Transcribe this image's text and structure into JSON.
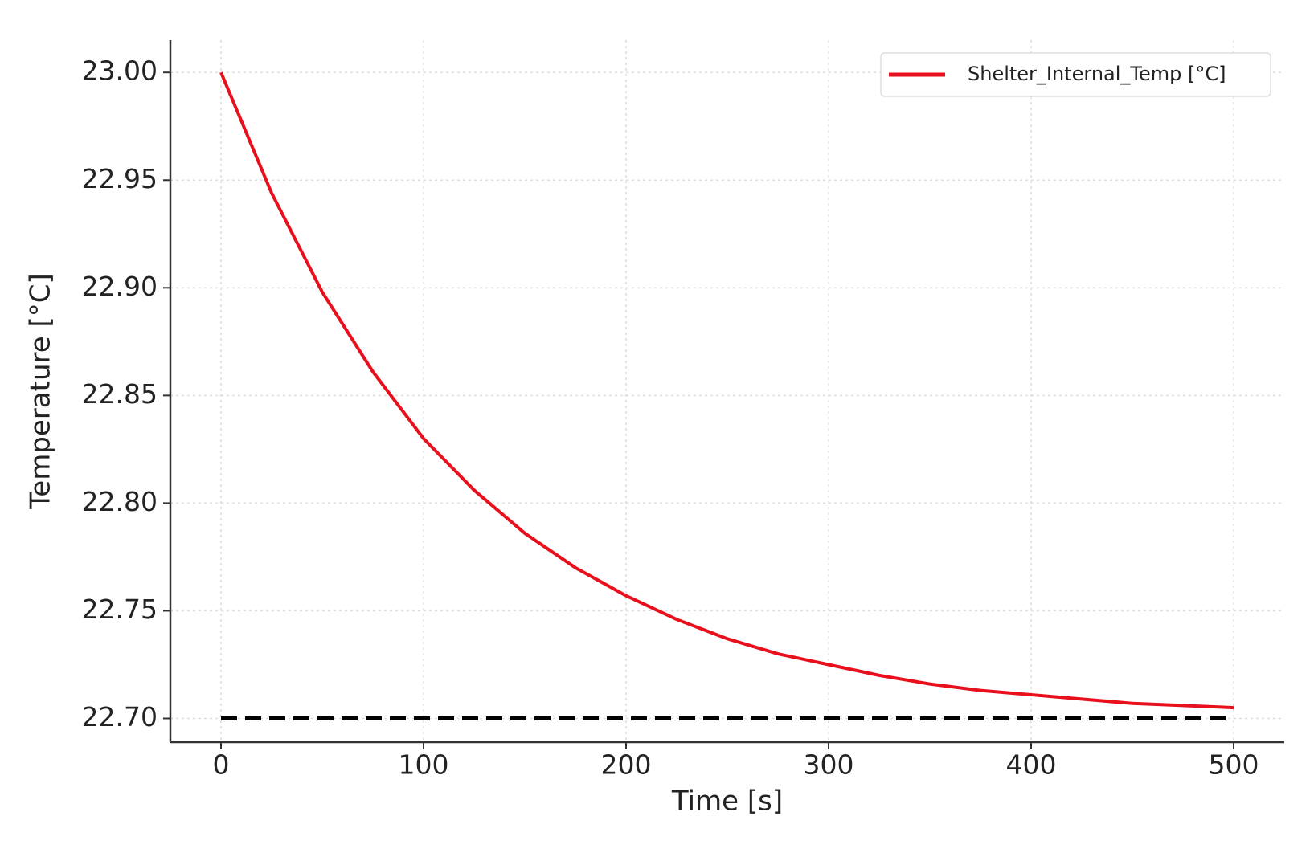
{
  "chart_data": {
    "type": "line",
    "x_label": "Time [s]",
    "y_label": "Temperature [°C]",
    "x": [
      0,
      25,
      50,
      75,
      100,
      125,
      150,
      175,
      200,
      225,
      250,
      275,
      300,
      325,
      350,
      375,
      400,
      425,
      450,
      475,
      500
    ],
    "series": [
      {
        "name": "Shelter_Internal_Temp [°C]",
        "color": "#e8101c",
        "values": [
          23.0,
          22.944,
          22.898,
          22.861,
          22.83,
          22.806,
          22.786,
          22.77,
          22.757,
          22.746,
          22.737,
          22.73,
          22.725,
          22.72,
          22.716,
          22.713,
          22.711,
          22.709,
          22.707,
          22.706,
          22.705
        ]
      }
    ],
    "reference_line": {
      "y": 22.7,
      "x": [
        0,
        500
      ],
      "color": "#000000"
    },
    "xlim": [
      -25,
      525
    ],
    "ylim": [
      22.689,
      23.015
    ],
    "xticks": [
      0,
      100,
      200,
      300,
      400,
      500
    ],
    "yticks": [
      {
        "value": 22.7,
        "label": "22.70"
      },
      {
        "value": 22.75,
        "label": "22.75"
      },
      {
        "value": 22.8,
        "label": "22.80"
      },
      {
        "value": 22.85,
        "label": "22.85"
      },
      {
        "value": 22.9,
        "label": "22.90"
      },
      {
        "value": 22.95,
        "label": "22.95"
      },
      {
        "value": 23,
        "label": "23.00"
      }
    ],
    "grid": true,
    "legend": "upper right"
  }
}
